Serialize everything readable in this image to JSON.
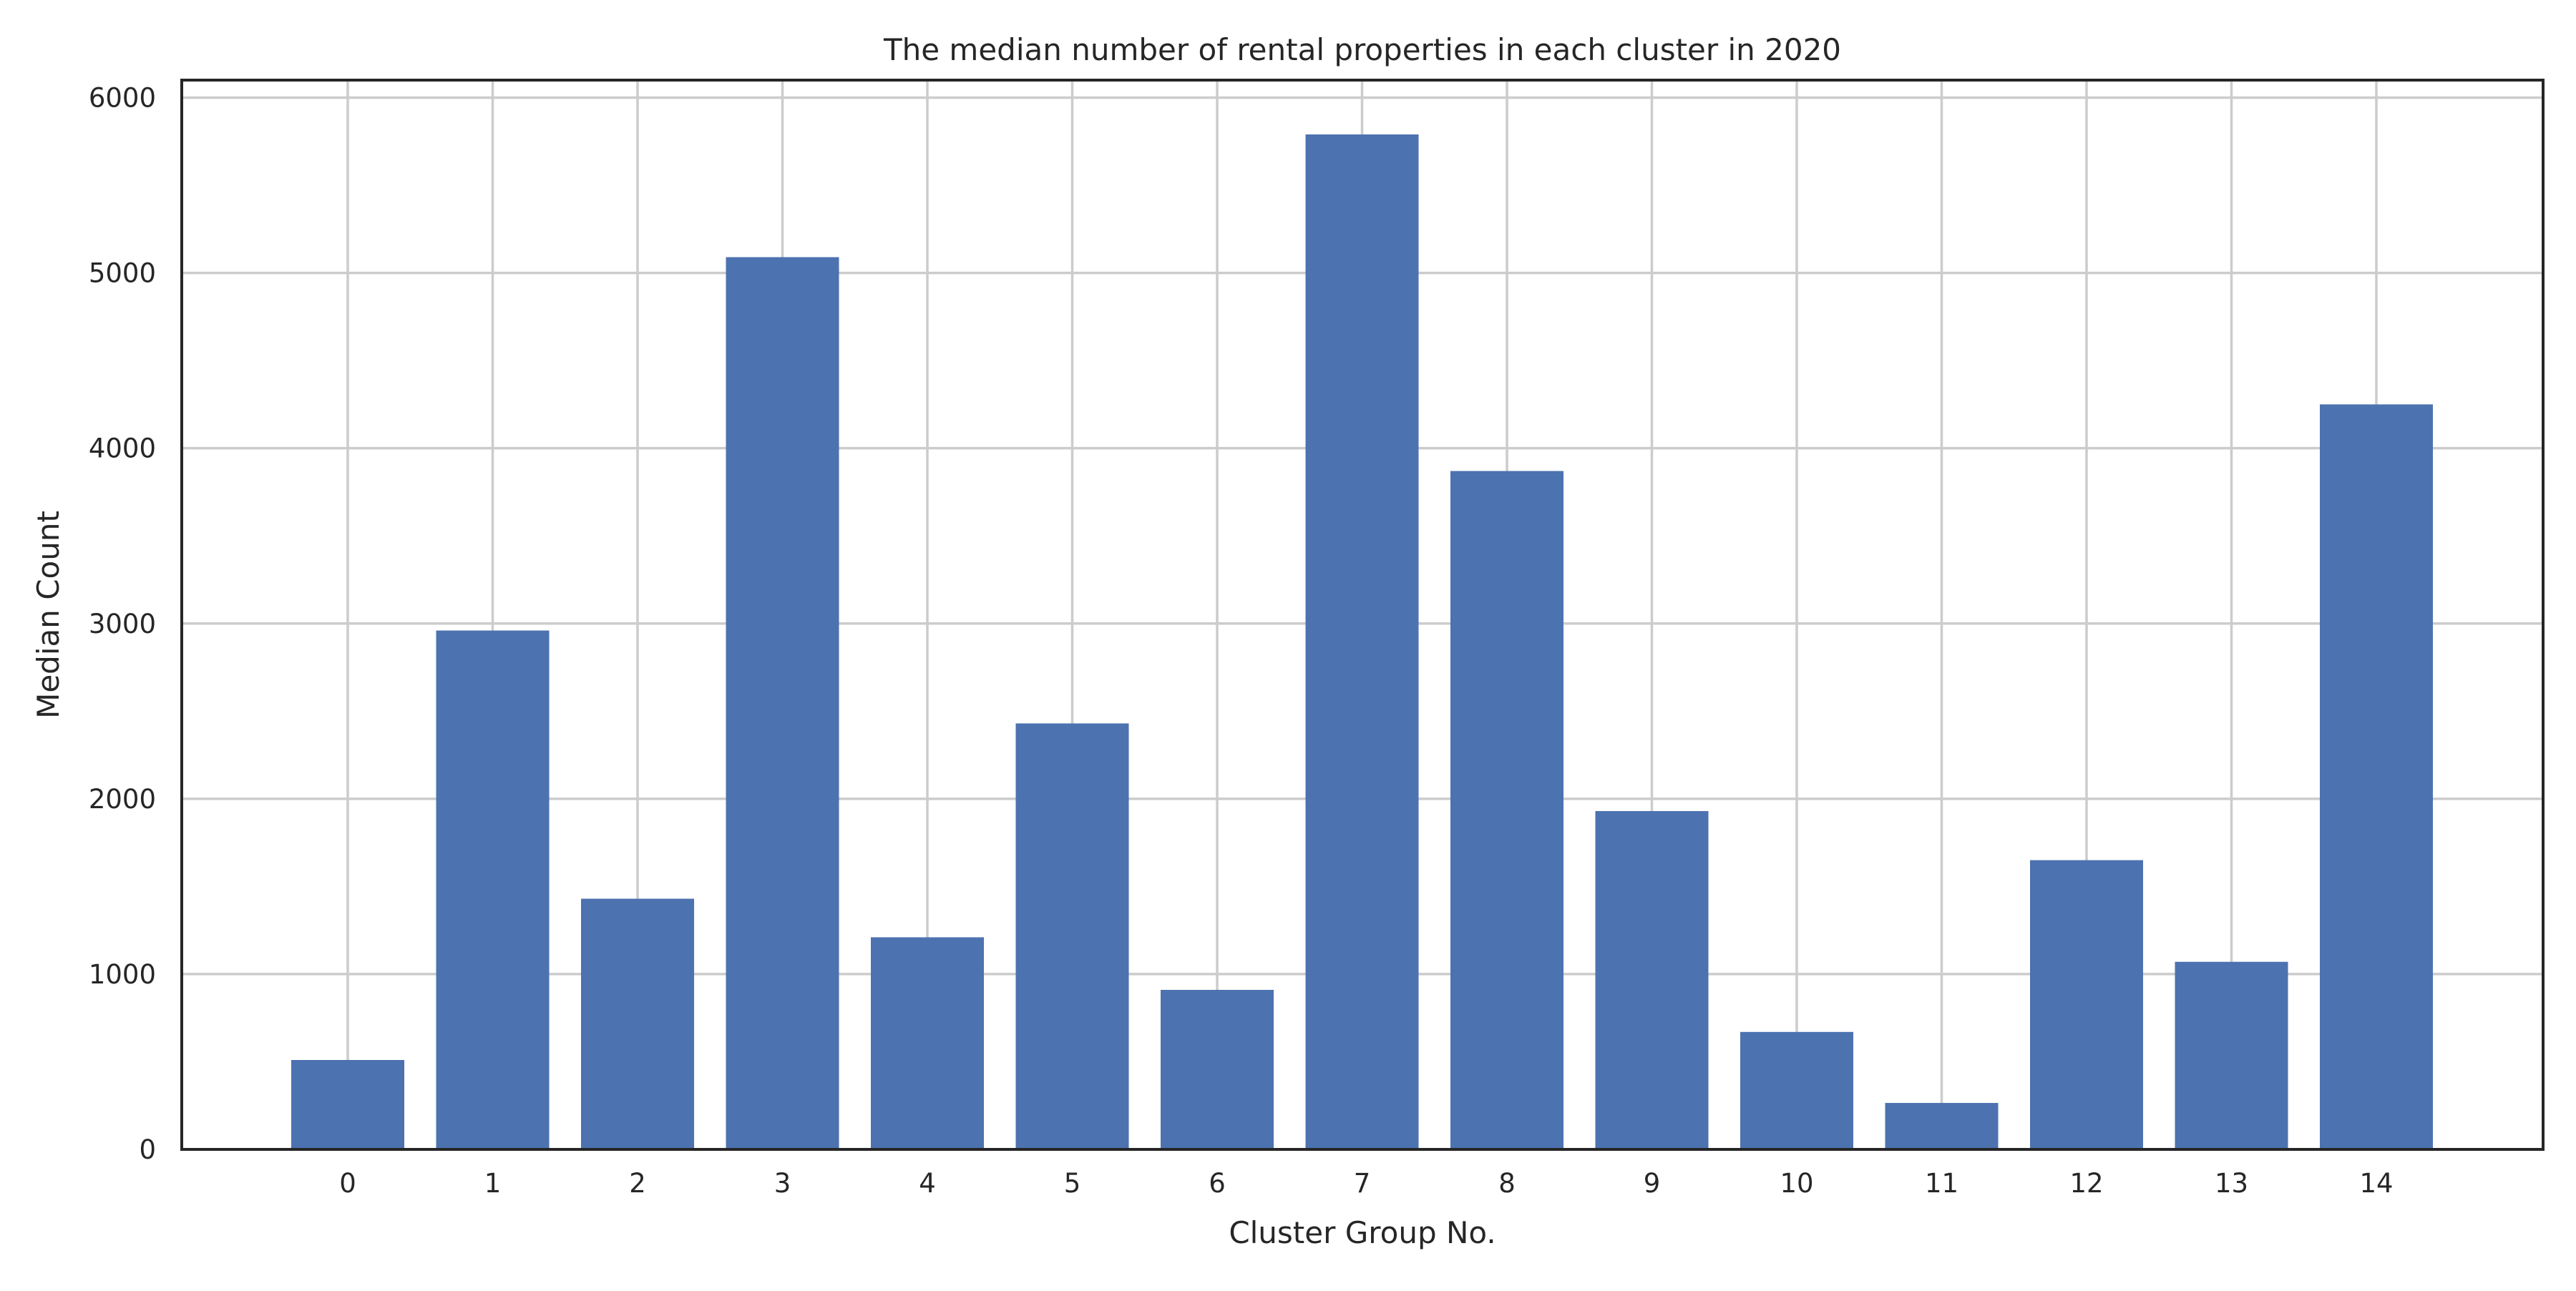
{
  "chart_data": {
    "type": "bar",
    "title": "The median number of rental properties in each cluster in 2020",
    "xlabel": "Cluster Group No.",
    "ylabel": "Median Count",
    "categories": [
      "0",
      "1",
      "2",
      "3",
      "4",
      "5",
      "6",
      "7",
      "8",
      "9",
      "10",
      "11",
      "12",
      "13",
      "14"
    ],
    "values": [
      510,
      2960,
      1430,
      5090,
      1210,
      2430,
      910,
      5790,
      3870,
      1930,
      670,
      265,
      1650,
      1070,
      4250
    ],
    "ylim": [
      0,
      6100
    ],
    "yticks": [
      "0",
      "1000",
      "2000",
      "3000",
      "4000",
      "5000",
      "6000"
    ],
    "grid": true,
    "legend": "none",
    "colors": {
      "bar": "#4c72b0",
      "grid": "#cccccc",
      "axes": "#262626",
      "background": "#ffffff"
    }
  }
}
